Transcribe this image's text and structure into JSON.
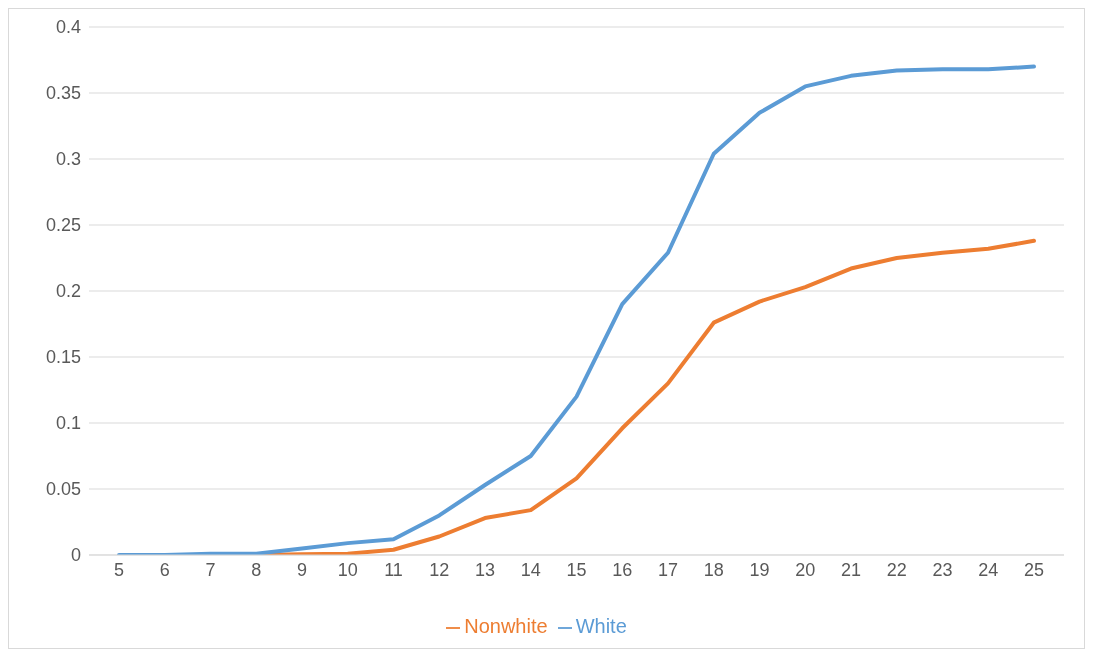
{
  "chart_data": {
    "type": "line",
    "categories": [
      "5",
      "6",
      "7",
      "8",
      "9",
      "10",
      "11",
      "12",
      "13",
      "14",
      "15",
      "16",
      "17",
      "18",
      "19",
      "20",
      "21",
      "22",
      "23",
      "24",
      "25"
    ],
    "series": [
      {
        "name": "Nonwhite",
        "color": "#ed7d31",
        "values": [
          null,
          null,
          null,
          0,
          0.0005,
          0.001,
          0.004,
          0.014,
          0.028,
          0.034,
          0.058,
          0.096,
          0.13,
          0.176,
          0.192,
          0.203,
          0.217,
          0.225,
          0.229,
          0.232,
          0.238
        ]
      },
      {
        "name": "White",
        "color": "#5b9bd5",
        "values": [
          0,
          0,
          0.001,
          0.001,
          0.005,
          0.009,
          0.012,
          0.03,
          0.053,
          0.075,
          0.12,
          0.19,
          0.229,
          0.304,
          0.335,
          0.355,
          0.363,
          0.367,
          0.368,
          0.368,
          0.37
        ]
      }
    ],
    "ylim": [
      0,
      0.4
    ],
    "yticks": [
      0,
      0.05,
      0.1,
      0.15,
      0.2,
      0.25,
      0.3,
      0.35,
      0.4
    ],
    "grid": "y",
    "legend": "bottom",
    "marker": "none",
    "line_style": "solid"
  }
}
